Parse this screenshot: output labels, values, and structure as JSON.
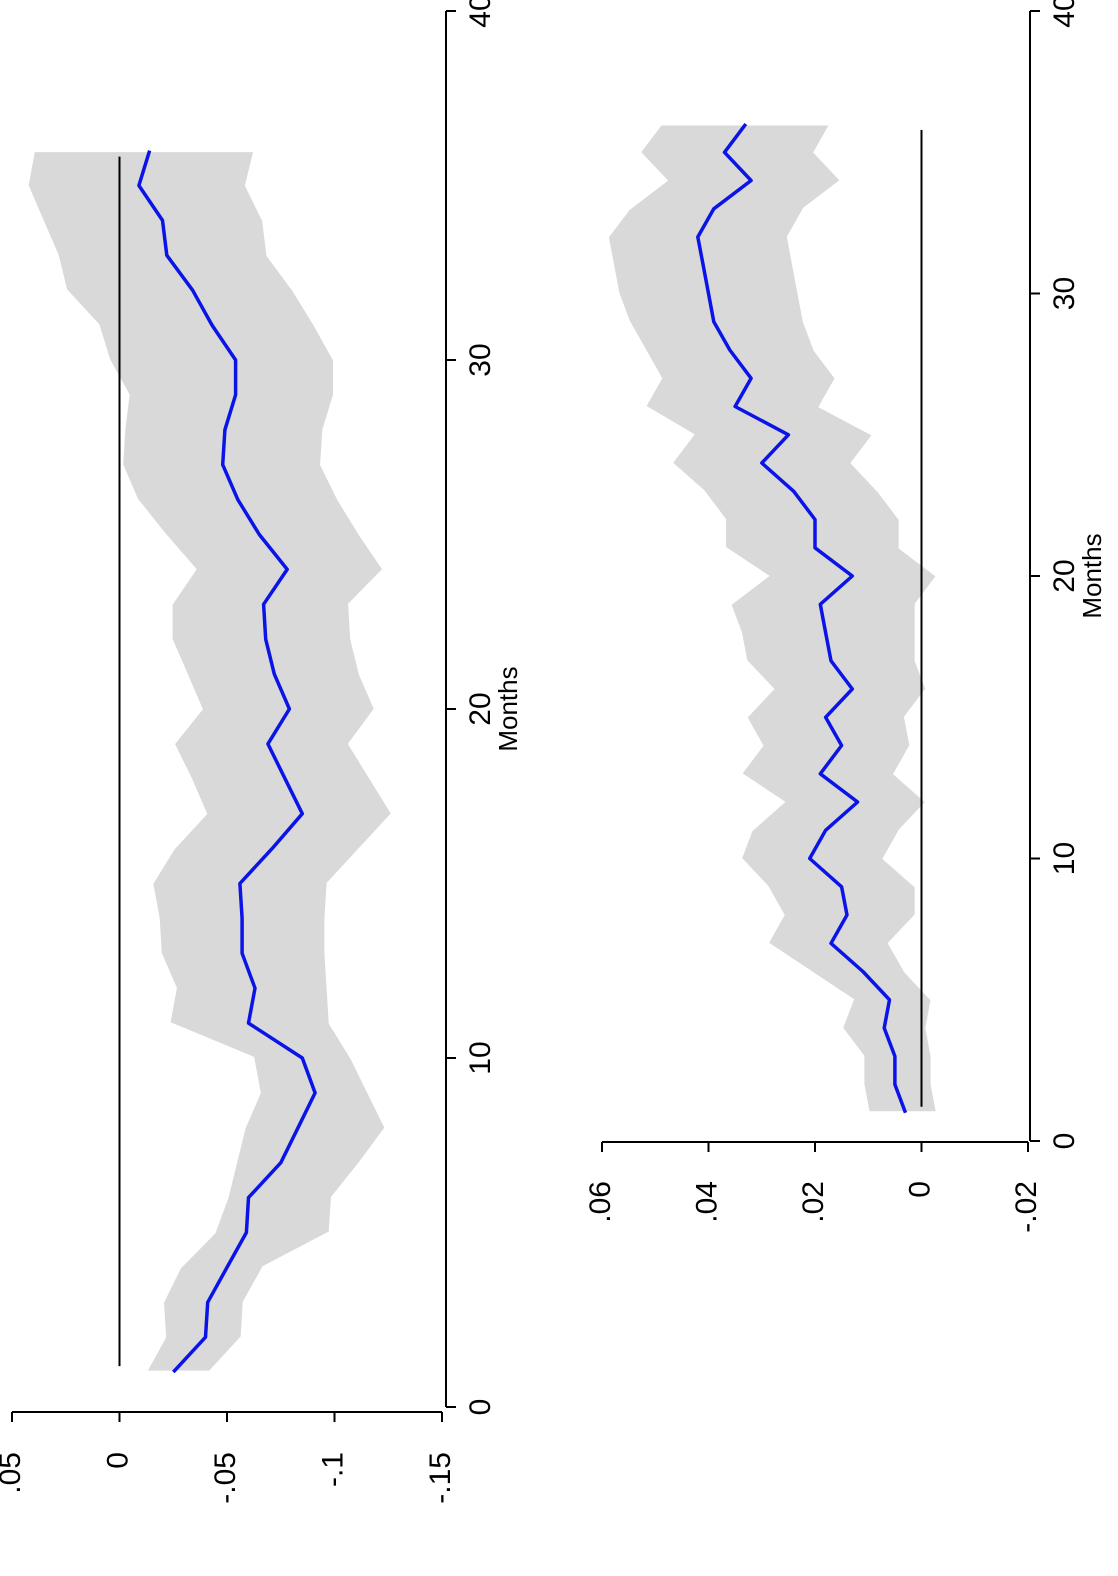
{
  "chart_data": [
    {
      "type": "line",
      "xlabel": "Months",
      "ylabel": "",
      "xlim": [
        0,
        40
      ],
      "ylim": [
        -0.15,
        0.05
      ],
      "xticks": [
        0,
        10,
        20,
        30,
        40
      ],
      "xtick_labels": [
        "0",
        "10",
        "20",
        "30",
        "40"
      ],
      "yticks": [
        0.05,
        0,
        -0.05,
        -0.1,
        -0.15
      ],
      "ytick_labels": [
        ".05",
        "0",
        "-.05",
        "-.1",
        "-.15"
      ],
      "grid": false,
      "reference_line": 0,
      "colors": {
        "line": "#0a14e6",
        "band": "#d9d9d9",
        "reference": "#000000"
      },
      "x": [
        1,
        2,
        3,
        4,
        5,
        6,
        7,
        8,
        9,
        10,
        11,
        12,
        13,
        14,
        15,
        16,
        17,
        18,
        19,
        20,
        21,
        22,
        23,
        24,
        25,
        26,
        27,
        28,
        29,
        30,
        31,
        32,
        33,
        34,
        35,
        36
      ],
      "y": [
        -0.025,
        -0.04,
        -0.041,
        -0.05,
        -0.059,
        -0.06,
        -0.075,
        -0.083,
        -0.091,
        -0.085,
        -0.06,
        -0.063,
        -0.057,
        -0.057,
        -0.056,
        -0.071,
        -0.085,
        -0.077,
        -0.069,
        -0.079,
        -0.072,
        -0.068,
        -0.067,
        -0.078,
        -0.065,
        -0.055,
        -0.048,
        -0.049,
        -0.054,
        -0.054,
        -0.043,
        -0.034,
        -0.022,
        -0.02,
        -0.009,
        -0.014
      ],
      "lower": [
        -0.042,
        -0.057,
        -0.058,
        -0.067,
        -0.098,
        -0.099,
        -0.112,
        -0.124,
        -0.116,
        -0.108,
        -0.098,
        -0.097,
        -0.096,
        -0.096,
        -0.097,
        -0.112,
        -0.127,
        -0.117,
        -0.107,
        -0.119,
        -0.112,
        -0.108,
        -0.107,
        -0.123,
        -0.112,
        -0.102,
        -0.094,
        -0.095,
        -0.1,
        -0.1,
        -0.091,
        -0.081,
        -0.069,
        -0.067,
        -0.059,
        -0.063
      ],
      "upper": [
        -0.012,
        -0.021,
        -0.02,
        -0.028,
        -0.044,
        -0.05,
        -0.054,
        -0.058,
        -0.065,
        -0.062,
        -0.023,
        -0.026,
        -0.019,
        -0.018,
        -0.015,
        -0.025,
        -0.04,
        -0.033,
        -0.025,
        -0.038,
        -0.031,
        -0.024,
        -0.024,
        -0.035,
        -0.021,
        -0.008,
        -0.001,
        -0.002,
        -0.004,
        0.005,
        0.01,
        0.025,
        0.029,
        0.036,
        0.043,
        0.04
      ]
    },
    {
      "type": "line",
      "xlabel": "Months",
      "ylabel": "",
      "xlim": [
        0,
        40
      ],
      "ylim": [
        -0.02,
        0.06
      ],
      "xticks": [
        0,
        10,
        20,
        30,
        40
      ],
      "xtick_labels": [
        "0",
        "10",
        "20",
        "30",
        "40"
      ],
      "yticks": [
        0.06,
        0.04,
        0.02,
        0,
        -0.02
      ],
      "ytick_labels": [
        ".06",
        ".04",
        ".02",
        "0",
        "-.02"
      ],
      "grid": false,
      "reference_line": 0,
      "colors": {
        "line": "#0a14e6",
        "band": "#d9d9d9",
        "reference": "#000000"
      },
      "x": [
        1,
        2,
        3,
        4,
        5,
        6,
        7,
        8,
        9,
        10,
        11,
        12,
        13,
        14,
        15,
        16,
        17,
        18,
        19,
        20,
        21,
        22,
        23,
        24,
        25,
        26,
        27,
        28,
        29,
        30,
        31,
        32,
        33,
        34,
        35,
        36
      ],
      "y": [
        0.003,
        0.005,
        0.005,
        0.007,
        0.006,
        0.011,
        0.017,
        0.014,
        0.015,
        0.021,
        0.018,
        0.012,
        0.019,
        0.015,
        0.018,
        0.013,
        0.017,
        0.018,
        0.019,
        0.013,
        0.02,
        0.02,
        0.024,
        0.03,
        0.025,
        0.035,
        0.032,
        0.036,
        0.039,
        0.04,
        0.041,
        0.042,
        0.039,
        0.032,
        0.037,
        0.033
      ],
      "lower": [
        -0.003,
        -0.002,
        -0.002,
        -0.001,
        -0.002,
        0.003,
        0.006,
        0.001,
        0.001,
        0.007,
        0.004,
        -0.001,
        0.005,
        0.002,
        0.003,
        -0.001,
        0.001,
        0.001,
        0.001,
        -0.003,
        0.004,
        0.004,
        0.008,
        0.013,
        0.009,
        0.019,
        0.016,
        0.02,
        0.022,
        0.023,
        0.024,
        0.025,
        0.022,
        0.015,
        0.02,
        0.017
      ],
      "upper": [
        0.01,
        0.011,
        0.011,
        0.015,
        0.013,
        0.021,
        0.029,
        0.026,
        0.029,
        0.034,
        0.032,
        0.026,
        0.034,
        0.03,
        0.033,
        0.028,
        0.033,
        0.034,
        0.036,
        0.029,
        0.037,
        0.037,
        0.041,
        0.047,
        0.043,
        0.052,
        0.049,
        0.052,
        0.055,
        0.057,
        0.058,
        0.059,
        0.055,
        0.048,
        0.053,
        0.049
      ]
    }
  ]
}
